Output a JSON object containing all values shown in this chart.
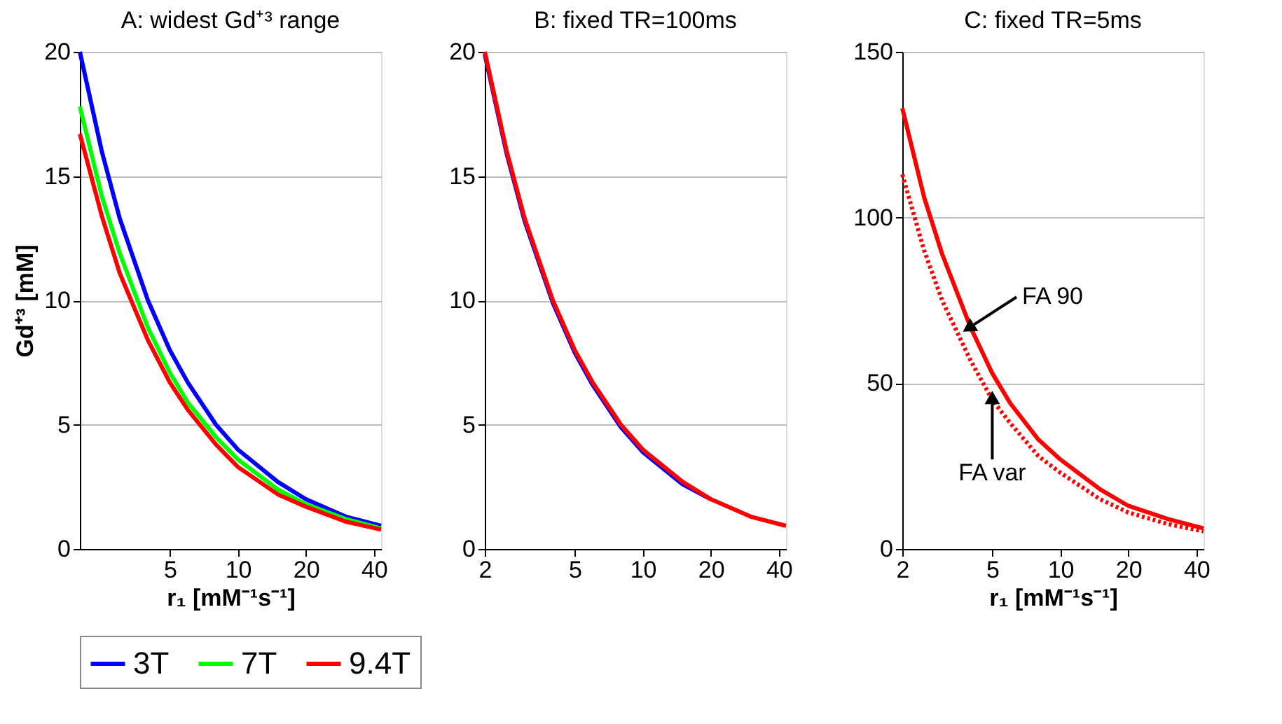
{
  "chart_data": [
    {
      "type": "line",
      "title": "A: widest Gd⁺³ range",
      "xlabel": "r₁ [mM⁻¹s⁻¹]",
      "ylabel": "Gd⁺³ [mM]",
      "log": "x",
      "xlim": [
        2,
        43
      ],
      "xticks": [
        5,
        10,
        20,
        40
      ],
      "ylim": [
        0,
        20
      ],
      "yticks": [
        0,
        5,
        10,
        15,
        20
      ],
      "grid": "y",
      "legend": "bottom",
      "line_style": "solid",
      "marker": "none",
      "x": [
        2,
        2.5,
        3,
        4,
        5,
        6,
        8,
        10,
        15,
        20,
        30,
        43
      ],
      "series": [
        {
          "name": "3T",
          "color": "#0000ff",
          "values": [
            20,
            16,
            13.3,
            10,
            8,
            6.7,
            5,
            4,
            2.7,
            2,
            1.3,
            0.93
          ]
        },
        {
          "name": "7T",
          "color": "#00ff00",
          "values": [
            17.8,
            14.2,
            11.9,
            8.9,
            7.1,
            5.9,
            4.5,
            3.6,
            2.4,
            1.8,
            1.2,
            0.83
          ]
        },
        {
          "name": "9.4T",
          "color": "#ff0000",
          "values": [
            16.7,
            13.4,
            11.1,
            8.4,
            6.7,
            5.6,
            4.2,
            3.3,
            2.2,
            1.7,
            1.1,
            0.78
          ]
        }
      ]
    },
    {
      "type": "line",
      "title": "B: fixed TR=100ms",
      "log": "x",
      "xlim": [
        2,
        43
      ],
      "xticks": [
        2,
        5,
        10,
        20,
        40
      ],
      "ylim": [
        0,
        20
      ],
      "yticks": [
        0,
        5,
        10,
        15,
        20
      ],
      "grid": "y",
      "legend": "bottom",
      "line_style": "solid",
      "marker": "none",
      "x": [
        2,
        2.5,
        3,
        4,
        5,
        6,
        8,
        10,
        15,
        20,
        30,
        43
      ],
      "series": [
        {
          "name": "3T",
          "color": "#0000ff",
          "values": [
            19.9,
            15.9,
            13.2,
            9.9,
            7.9,
            6.6,
            4.9,
            3.9,
            2.6,
            2,
            null,
            null
          ]
        },
        {
          "name": "7T",
          "color": "#00ff00",
          "values": [
            null,
            null,
            null,
            null,
            null,
            null,
            null,
            null,
            null,
            null,
            null,
            null
          ]
        },
        {
          "name": "9.4T",
          "color": "#ff0000",
          "values": [
            20,
            16,
            13.3,
            10,
            8,
            6.7,
            5,
            4,
            2.7,
            2,
            1.3,
            0.93
          ]
        }
      ]
    },
    {
      "type": "line",
      "title": "C: fixed TR=5ms",
      "xlabel": "r₁ [mM⁻¹s⁻¹]",
      "log": "x",
      "xlim": [
        2,
        43
      ],
      "xticks": [
        2,
        5,
        10,
        20,
        40
      ],
      "ylim": [
        0,
        150
      ],
      "yticks": [
        0,
        50,
        100,
        150
      ],
      "grid": "y",
      "marker": "none",
      "x": [
        2,
        2.5,
        3,
        4,
        5,
        6,
        8,
        10,
        15,
        20,
        30,
        43
      ],
      "series": [
        {
          "color": "#ff0000",
          "line_style": "solid",
          "values": [
            133,
            106,
            89,
            67,
            53,
            44,
            33,
            27,
            18,
            13,
            9,
            6.2
          ]
        },
        {
          "color": "#ff0000",
          "line_style": "dotted",
          "values": [
            113,
            90,
            75,
            57,
            45,
            38,
            28,
            23,
            15,
            11,
            7.5,
            5.3
          ]
        }
      ],
      "annotations": [
        {
          "text": "FA 90",
          "x": 4,
          "y": 67
        },
        {
          "text": "FA var",
          "x": 5,
          "y": 45
        }
      ]
    }
  ]
}
